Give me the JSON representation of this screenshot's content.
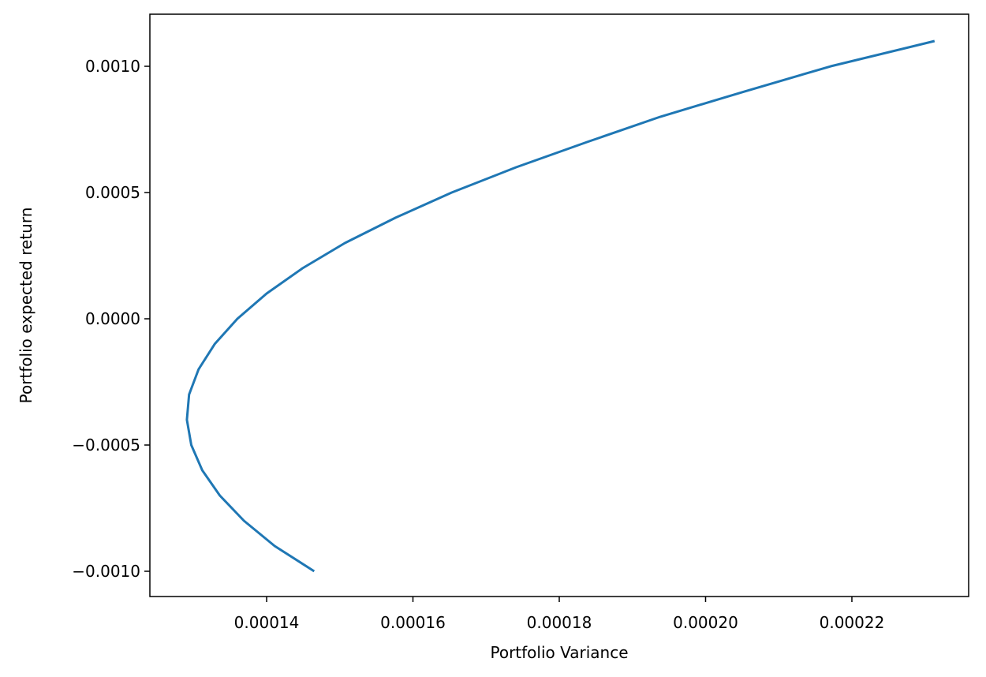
{
  "chart_data": {
    "type": "line",
    "x_label": "Portfolio Variance",
    "y_label": "Portfolio expected return",
    "series": [
      {
        "color": "#1f77b4",
        "x": [
          0.0001465,
          0.0001411,
          0.0001369,
          0.0001336,
          0.0001312,
          0.0001297,
          0.0001291,
          0.0001294,
          0.0001307,
          0.0001329,
          0.000136,
          0.00014,
          0.0001449,
          0.0001507,
          0.0001576,
          0.0001653,
          0.0001741,
          0.0001838,
          0.0001938,
          0.0002053,
          0.0002171,
          0.0002313
        ],
        "values": [
          -0.001,
          -0.0009,
          -0.0008,
          -0.0007,
          -0.0006,
          -0.0005,
          -0.0004,
          -0.0003,
          -0.0002,
          -0.0001,
          0,
          0.0001,
          0.0002,
          0.0003,
          0.0004,
          0.0005,
          0.0006,
          0.0007,
          0.0008,
          0.0009,
          0.001,
          0.0011
        ]
      }
    ],
    "xlim": [
      0.00012404,
      0.00023596
    ],
    "ylim": [
      -0.0011,
      0.0012063
    ],
    "xticks": [
      {
        "value": 0.00014,
        "label": "0.00014"
      },
      {
        "value": 0.00016,
        "label": "0.00016"
      },
      {
        "value": 0.00018,
        "label": "0.00018"
      },
      {
        "value": 0.0002,
        "label": "0.00020"
      },
      {
        "value": 0.00022,
        "label": "0.00022"
      }
    ],
    "yticks": [
      {
        "value": -0.001,
        "label": "−0.0010"
      },
      {
        "value": -0.0005,
        "label": "−0.0005"
      },
      {
        "value": 0,
        "label": "0.0000"
      },
      {
        "value": 0.0005,
        "label": "0.0005"
      },
      {
        "value": 0.001,
        "label": "0.0010"
      }
    ],
    "grid": false
  }
}
